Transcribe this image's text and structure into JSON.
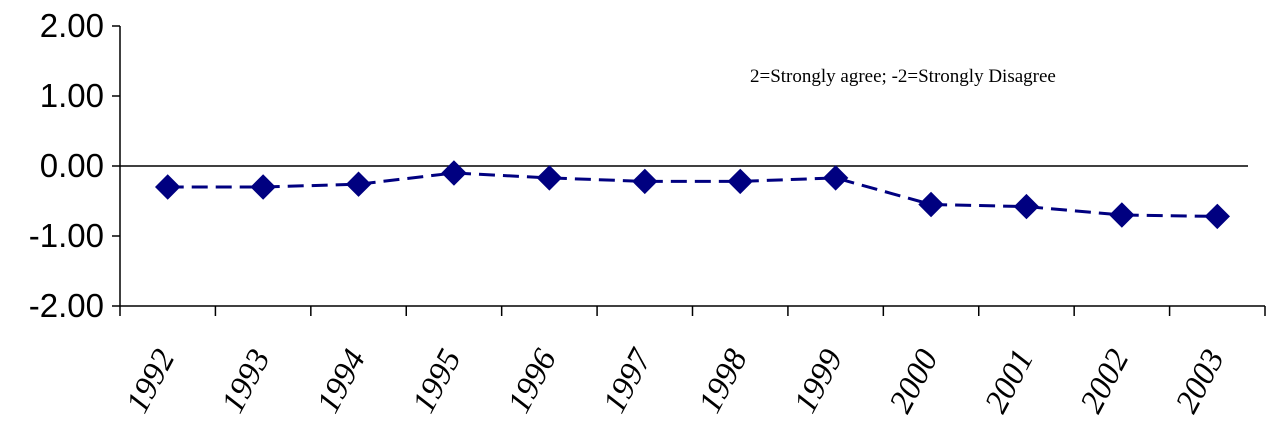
{
  "chart_data": {
    "type": "line",
    "categories": [
      "1992",
      "1993",
      "1994",
      "1995",
      "1996",
      "1997",
      "1998",
      "1999",
      "2000",
      "2001",
      "2002",
      "2003"
    ],
    "series": [
      {
        "values": [
          -0.3,
          -0.3,
          -0.26,
          -0.1,
          -0.17,
          -0.22,
          -0.22,
          -0.17,
          -0.55,
          -0.58,
          -0.7,
          -0.72
        ]
      }
    ],
    "ylim": [
      -2,
      2
    ],
    "yticks": [
      "2.00",
      "1.00",
      "0.00",
      "-1.00",
      "-2.00"
    ],
    "annotation": "2=Strongly agree;  -2=Strongly Disagree",
    "series_color": "#000080",
    "marker": "diamond",
    "line_style": "dashed",
    "grid": false
  }
}
